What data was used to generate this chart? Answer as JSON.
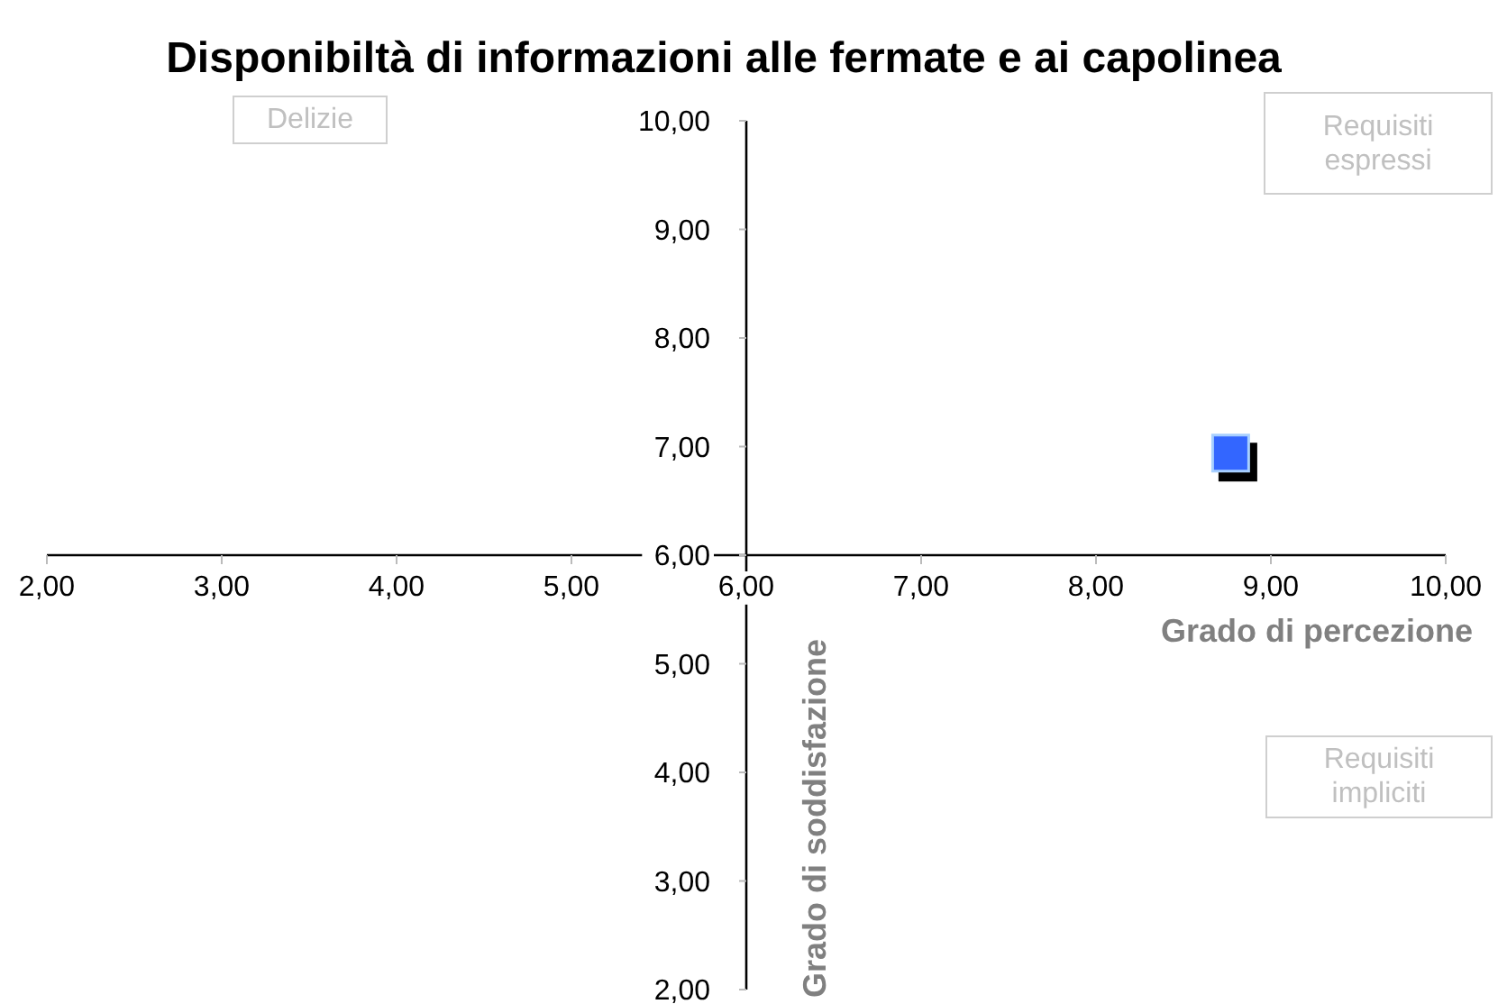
{
  "chart_data": {
    "type": "scatter",
    "title": "Disponibiltà di informazioni alle fermate e ai capolinea",
    "xlabel": "Grado di percezione",
    "ylabel": "Grado di soddisfazione",
    "annotations": [
      "Delizie",
      "Requisiti espressi",
      "Requisiti impliciti"
    ],
    "x": [
      8.77
    ],
    "values": [
      6.94
    ],
    "color": "#3366ff",
    "marker": "square",
    "xlim": [
      2,
      10
    ],
    "ylim": [
      2,
      10
    ],
    "xticks": [
      {
        "value": 2,
        "label": "2,00"
      },
      {
        "value": 3,
        "label": "3,00"
      },
      {
        "value": 4,
        "label": "4,00"
      },
      {
        "value": 5,
        "label": "5,00"
      },
      {
        "value": 6,
        "label": "6,00"
      },
      {
        "value": 7,
        "label": "7,00"
      },
      {
        "value": 8,
        "label": "8,00"
      },
      {
        "value": 9,
        "label": "9,00"
      },
      {
        "value": 10,
        "label": "10,00"
      }
    ],
    "yticks": [
      {
        "value": 2,
        "label": "2,00"
      },
      {
        "value": 3,
        "label": "3,00"
      },
      {
        "value": 4,
        "label": "4,00"
      },
      {
        "value": 5,
        "label": "5,00"
      },
      {
        "value": 6,
        "label": "6,00"
      },
      {
        "value": 7,
        "label": "7,00"
      },
      {
        "value": 8,
        "label": "8,00"
      },
      {
        "value": 9,
        "label": "9,00"
      },
      {
        "value": 10,
        "label": "10,00"
      }
    ]
  }
}
